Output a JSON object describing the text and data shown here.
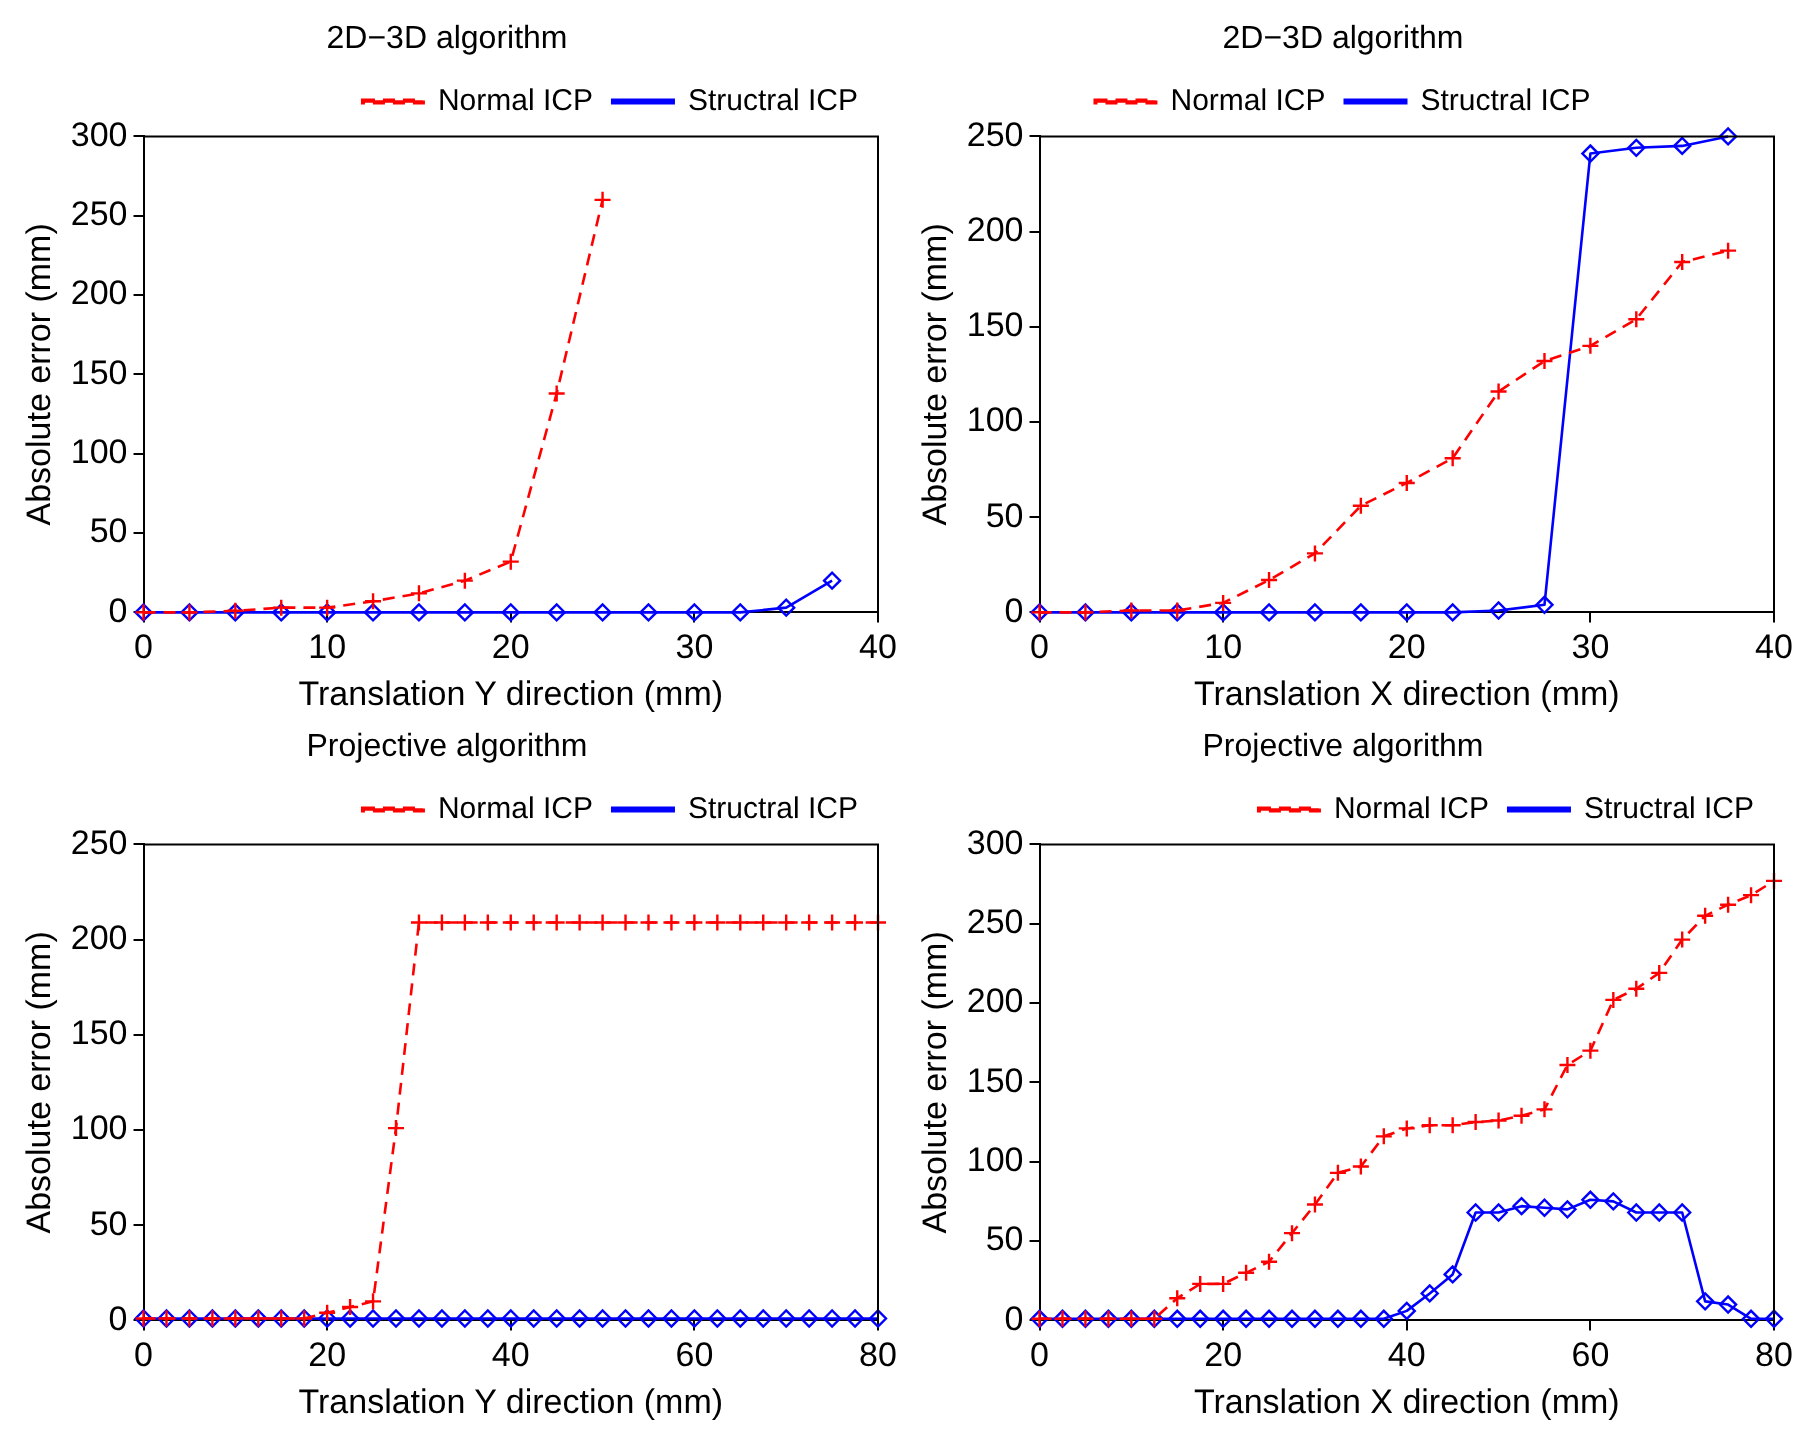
{
  "chart_data": [
    {
      "type": "line",
      "title": "2D−3D algorithm",
      "xlabel": "Translation Y direction (mm)",
      "ylabel": "Absolute error (mm)",
      "x": [
        0,
        2.5,
        5,
        7.5,
        10,
        12.5,
        15,
        17.5,
        20,
        22.5,
        25,
        27.5,
        30,
        32.5,
        35,
        37.5
      ],
      "xlim": [
        0,
        40
      ],
      "xticks": [
        0,
        10,
        20,
        30,
        40
      ],
      "ylim": [
        0,
        300
      ],
      "yticks": [
        0,
        50,
        100,
        150,
        200,
        250,
        300
      ],
      "grid": false,
      "legend": "top right",
      "series": [
        {
          "name": "Normal ICP",
          "color": "#ff0000",
          "marker": "cross",
          "line_style": "dashed",
          "values": [
            0,
            0,
            1,
            3,
            3,
            7,
            12,
            20,
            32,
            138,
            260,
            null,
            null,
            null,
            null,
            null
          ]
        },
        {
          "name": "Structral ICP",
          "color": "#0000ff",
          "marker": "diamond",
          "line_style": "solid",
          "values": [
            0,
            0,
            0,
            0,
            0,
            0,
            0,
            0,
            0,
            0,
            0,
            0,
            0,
            0,
            3,
            20
          ]
        }
      ]
    },
    {
      "type": "line",
      "title": "2D−3D algorithm",
      "xlabel": "Translation X direction (mm)",
      "ylabel": "Absolute error (mm)",
      "x": [
        0,
        2.5,
        5,
        7.5,
        10,
        12.5,
        15,
        17.5,
        20,
        22.5,
        25,
        27.5,
        30,
        32.5,
        35,
        37.5
      ],
      "xlim": [
        0,
        40
      ],
      "xticks": [
        0,
        10,
        20,
        30,
        40
      ],
      "ylim": [
        0,
        250
      ],
      "yticks": [
        0,
        50,
        100,
        150,
        200,
        250
      ],
      "grid": false,
      "legend": "top",
      "series": [
        {
          "name": "Normal ICP",
          "color": "#ff0000",
          "marker": "cross",
          "line_style": "dashed",
          "values": [
            0,
            0,
            1,
            1,
            5,
            17,
            31,
            56,
            68,
            81,
            116,
            132,
            140,
            154,
            184,
            190
          ]
        },
        {
          "name": "Structral ICP",
          "color": "#0000ff",
          "marker": "diamond",
          "line_style": "solid",
          "values": [
            0,
            0,
            0,
            0,
            0,
            0,
            0,
            0,
            0,
            0,
            1,
            4,
            241,
            244,
            245,
            250
          ]
        }
      ]
    },
    {
      "type": "line",
      "title": "Projective algorithm",
      "xlabel": "Translation Y direction (mm)",
      "ylabel": "Absolute error (mm)",
      "x": [
        0,
        2.5,
        5,
        7.5,
        10,
        12.5,
        15,
        17.5,
        20,
        22.5,
        25,
        27.5,
        30,
        32.5,
        35,
        37.5,
        40,
        42.5,
        45,
        47.5,
        50,
        52.5,
        55,
        57.5,
        60,
        62.5,
        65,
        67.5,
        70,
        72.5,
        75,
        77.5,
        80
      ],
      "xlim": [
        0,
        80
      ],
      "xticks": [
        0,
        20,
        40,
        60,
        80
      ],
      "ylim": [
        0,
        250
      ],
      "yticks": [
        0,
        50,
        100,
        150,
        200,
        250
      ],
      "grid": false,
      "legend": "top right",
      "series": [
        {
          "name": "Normal ICP",
          "color": "#ff0000",
          "marker": "cross",
          "line_style": "dashed",
          "values": [
            1,
            1,
            1,
            1,
            1,
            1,
            1,
            1,
            4,
            7,
            10,
            101,
            209,
            209,
            209,
            209,
            209,
            209,
            209,
            209,
            209,
            209,
            209,
            209,
            209,
            209,
            209,
            209,
            209,
            209,
            209,
            209,
            209
          ]
        },
        {
          "name": "Structral ICP",
          "color": "#0000ff",
          "marker": "diamond",
          "line_style": "solid",
          "values": [
            1,
            1,
            1,
            1,
            1,
            1,
            1,
            1,
            1,
            1,
            1,
            1,
            1,
            1,
            1,
            1,
            1,
            1,
            1,
            1,
            1,
            1,
            1,
            1,
            1,
            1,
            1,
            1,
            1,
            1,
            1,
            1,
            1
          ]
        }
      ]
    },
    {
      "type": "line",
      "title": "Projective algorithm",
      "xlabel": "Translation X direction (mm)",
      "ylabel": "Absolute error (mm)",
      "x": [
        0,
        2.5,
        5,
        7.5,
        10,
        12.5,
        15,
        17.5,
        20,
        22.5,
        25,
        27.5,
        30,
        32.5,
        35,
        37.5,
        40,
        42.5,
        45,
        47.5,
        50,
        52.5,
        55,
        57.5,
        60,
        62.5,
        65,
        67.5,
        70,
        72.5,
        75,
        77.5,
        80
      ],
      "xlim": [
        0,
        80
      ],
      "xticks": [
        0,
        20,
        40,
        60,
        80
      ],
      "ylim": [
        0,
        300
      ],
      "yticks": [
        0,
        50,
        100,
        150,
        200,
        250,
        300
      ],
      "grid": false,
      "legend": "top right",
      "series": [
        {
          "name": "Normal ICP",
          "color": "#ff0000",
          "marker": "cross",
          "line_style": "dashed",
          "values": [
            1,
            1,
            1,
            1,
            1,
            1,
            14,
            23,
            23,
            30,
            37,
            55,
            73,
            93,
            97,
            116,
            121,
            123,
            123,
            125,
            126,
            129,
            133,
            161,
            170,
            202,
            209,
            219,
            240,
            255,
            262,
            268,
            277
          ]
        },
        {
          "name": "Structral ICP",
          "color": "#0000ff",
          "marker": "diamond",
          "line_style": "solid",
          "values": [
            1,
            1,
            1,
            1,
            1,
            1,
            1,
            1,
            1,
            1,
            1,
            1,
            1,
            1,
            1,
            1,
            6,
            17,
            29,
            68,
            68,
            72,
            71,
            70,
            76,
            75,
            68,
            68,
            68,
            12,
            10,
            1,
            1
          ]
        }
      ]
    }
  ]
}
